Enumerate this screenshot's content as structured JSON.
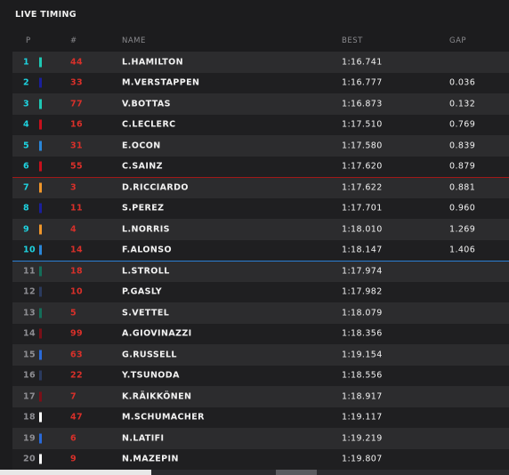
{
  "title": "LIVE TIMING",
  "columns": {
    "pos": "P",
    "num": "#",
    "name": "NAME",
    "best": "BEST",
    "gap": "GAP"
  },
  "colors": {
    "q1_cut": "#a01818",
    "q2_cut": "#2a7fd4"
  },
  "rows": [
    {
      "pos": "1",
      "num": "44",
      "name": "L.HAMILTON",
      "best": "1:16.741",
      "gap": "",
      "team_color": "#1ec8b4"
    },
    {
      "pos": "2",
      "num": "33",
      "name": "M.VERSTAPPEN",
      "best": "1:16.777",
      "gap": "0.036",
      "team_color": "#1a1f9c"
    },
    {
      "pos": "3",
      "num": "77",
      "name": "V.BOTTAS",
      "best": "1:16.873",
      "gap": "0.132",
      "team_color": "#1ec8b4"
    },
    {
      "pos": "4",
      "num": "16",
      "name": "C.LECLERC",
      "best": "1:17.510",
      "gap": "0.769",
      "team_color": "#c8101c"
    },
    {
      "pos": "5",
      "num": "31",
      "name": "E.OCON",
      "best": "1:17.580",
      "gap": "0.839",
      "team_color": "#2a86d8"
    },
    {
      "pos": "6",
      "num": "55",
      "name": "C.SAINZ",
      "best": "1:17.620",
      "gap": "0.879",
      "team_color": "#c8101c"
    },
    {
      "pos": "7",
      "num": "3",
      "name": "D.RICCIARDO",
      "best": "1:17.622",
      "gap": "0.881",
      "team_color": "#f0962a"
    },
    {
      "pos": "8",
      "num": "11",
      "name": "S.PEREZ",
      "best": "1:17.701",
      "gap": "0.960",
      "team_color": "#1a1f9c"
    },
    {
      "pos": "9",
      "num": "4",
      "name": "L.NORRIS",
      "best": "1:18.010",
      "gap": "1.269",
      "team_color": "#f0962a"
    },
    {
      "pos": "10",
      "num": "14",
      "name": "F.ALONSO",
      "best": "1:18.147",
      "gap": "1.406",
      "team_color": "#2a86d8"
    },
    {
      "pos": "11",
      "num": "18",
      "name": "L.STROLL",
      "best": "1:17.974",
      "gap": "",
      "team_color": "#146e5a"
    },
    {
      "pos": "12",
      "num": "10",
      "name": "P.GASLY",
      "best": "1:17.982",
      "gap": "",
      "team_color": "#2b3a5e"
    },
    {
      "pos": "13",
      "num": "5",
      "name": "S.VETTEL",
      "best": "1:18.079",
      "gap": "",
      "team_color": "#146e5a"
    },
    {
      "pos": "14",
      "num": "99",
      "name": "A.GIOVINAZZI",
      "best": "1:18.356",
      "gap": "",
      "team_color": "#7a1018"
    },
    {
      "pos": "15",
      "num": "63",
      "name": "G.RUSSELL",
      "best": "1:19.154",
      "gap": "",
      "team_color": "#2a6ad8"
    },
    {
      "pos": "16",
      "num": "22",
      "name": "Y.TSUNODA",
      "best": "1:18.556",
      "gap": "",
      "team_color": "#2b3a5e"
    },
    {
      "pos": "17",
      "num": "7",
      "name": "K.RÄIKKÖNEN",
      "best": "1:18.917",
      "gap": "",
      "team_color": "#7a1018"
    },
    {
      "pos": "18",
      "num": "47",
      "name": "M.SCHUMACHER",
      "best": "1:19.117",
      "gap": "",
      "team_color": "#ffffff"
    },
    {
      "pos": "19",
      "num": "6",
      "name": "N.LATIFI",
      "best": "1:19.219",
      "gap": "",
      "team_color": "#2a6ad8"
    },
    {
      "pos": "20",
      "num": "9",
      "name": "N.MAZEPIN",
      "best": "1:19.807",
      "gap": "",
      "team_color": "#ffffff"
    }
  ]
}
